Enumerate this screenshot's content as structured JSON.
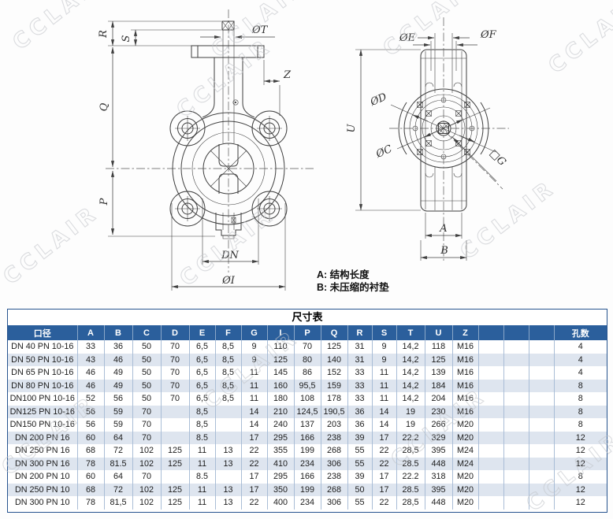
{
  "watermark": {
    "text": "CCLAIR"
  },
  "drawing": {
    "front_view_labels": {
      "r": "R",
      "s": "S",
      "t": "ØT",
      "z": "Z",
      "q": "Q",
      "p": "P",
      "dn": "DN",
      "i": "ØI"
    },
    "side_view_labels": {
      "e": "ØE",
      "f": "ØF",
      "d": "ØD",
      "c": "ØC",
      "u": "U",
      "g": "□G",
      "a": "A",
      "b": "B"
    },
    "notes": {
      "a": "A: 结构长度",
      "b": "B: 未压缩的衬垫"
    }
  },
  "table": {
    "title": "尺寸表",
    "columns": [
      "口径",
      "A",
      "B",
      "C",
      "D",
      "E",
      "F",
      "G",
      "I",
      "P",
      "Q",
      "R",
      "S",
      "T",
      "U",
      "Z",
      "",
      "",
      "",
      "孔数"
    ],
    "rows": [
      [
        "DN 40 PN 10-16",
        "33",
        "36",
        "50",
        "70",
        "6,5",
        "8,5",
        "9",
        "110",
        "70",
        "125",
        "31",
        "9",
        "14,2",
        "118",
        "M16",
        "",
        "",
        "",
        "4"
      ],
      [
        "DN 50 PN 10-16",
        "43",
        "46",
        "50",
        "70",
        "6,5",
        "8,5",
        "9",
        "125",
        "80",
        "140",
        "31",
        "9",
        "14,2",
        "125",
        "M16",
        "",
        "",
        "",
        "4"
      ],
      [
        "DN 65 PN 10-16",
        "46",
        "49",
        "50",
        "70",
        "6,5",
        "8,5",
        "11",
        "145",
        "86",
        "152",
        "33",
        "11",
        "14,2",
        "139",
        "M16",
        "",
        "",
        "",
        "4"
      ],
      [
        "DN 80 PN 10-16",
        "46",
        "49",
        "50",
        "70",
        "6,5",
        "8,5",
        "11",
        "160",
        "95,5",
        "159",
        "33",
        "11",
        "14,2",
        "184",
        "M16",
        "",
        "",
        "",
        "8"
      ],
      [
        "DN100 PN 10-16",
        "52",
        "56",
        "50",
        "70",
        "6,5",
        "8,5",
        "11",
        "180",
        "108",
        "178",
        "33",
        "11",
        "14,2",
        "204",
        "M16",
        "",
        "",
        "",
        "8"
      ],
      [
        "DN125 PN 10-16",
        "56",
        "59",
        "70",
        "",
        "8,5",
        "",
        "14",
        "210",
        "124,5",
        "190,5",
        "36",
        "14",
        "19",
        "230",
        "M16",
        "",
        "",
        "",
        "8"
      ],
      [
        "DN150 PN 10-16",
        "56",
        "59",
        "70",
        "",
        "8,5",
        "",
        "14",
        "240",
        "137",
        "203",
        "36",
        "14",
        "19",
        "266",
        "M20",
        "",
        "",
        "",
        "8"
      ],
      [
        "DN 200 PN 16",
        "60",
        "64",
        "70",
        "",
        "8.5",
        "",
        "17",
        "295",
        "166",
        "238",
        "39",
        "17",
        "22.2",
        "329",
        "M20",
        "",
        "",
        "",
        "12"
      ],
      [
        "DN 250 PN 16",
        "68",
        "72",
        "102",
        "125",
        "11",
        "13",
        "22",
        "355",
        "199",
        "268",
        "55",
        "22",
        "28,5",
        "395",
        "M24",
        "",
        "",
        "",
        "12"
      ],
      [
        "DN 300 PN 16",
        "78",
        "81.5",
        "102",
        "125",
        "11",
        "13",
        "22",
        "410",
        "234",
        "306",
        "55",
        "22",
        "28.5",
        "448",
        "M24",
        "",
        "",
        "",
        "12"
      ],
      [
        "DN 200 PN 10",
        "60",
        "64",
        "70",
        "",
        "8.5",
        "",
        "17",
        "295",
        "166",
        "238",
        "39",
        "17",
        "22.2",
        "318",
        "M20",
        "",
        "",
        "",
        "8"
      ],
      [
        "DN 250 PN 10",
        "68",
        "72",
        "102",
        "125",
        "11",
        "13",
        "17",
        "350",
        "199",
        "268",
        "50",
        "17",
        "28.5",
        "395",
        "M20",
        "",
        "",
        "",
        "12"
      ],
      [
        "DN 300 PN 10",
        "78",
        "81,5",
        "102",
        "125",
        "11",
        "13",
        "22",
        "400",
        "234",
        "306",
        "55",
        "22",
        "28,5",
        "448",
        "M20",
        "",
        "",
        "",
        "12"
      ]
    ],
    "colors": {
      "header_bg": "#2b5f9c",
      "stripe_bg": "#dee5ef",
      "grid": "#a9bdd6",
      "border": "#27548f"
    }
  }
}
